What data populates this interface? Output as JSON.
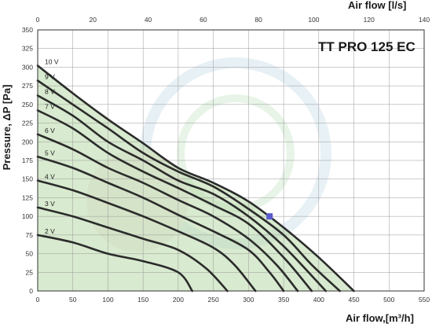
{
  "chart_data": {
    "type": "line",
    "title": "TT PRO 125 EC",
    "xlabel": "Air flow,[m³/h]",
    "x2label": "Air flow [l/s]",
    "ylabel": "Pressure, ΔP [Pa]",
    "xlim": [
      0,
      550
    ],
    "x2lim": [
      0,
      140
    ],
    "ylim": [
      0,
      350
    ],
    "x_ticks": [
      0,
      50,
      100,
      150,
      200,
      250,
      300,
      350,
      400,
      450,
      500,
      550
    ],
    "x2_ticks": [
      0,
      20,
      40,
      60,
      80,
      100,
      120,
      140
    ],
    "y_ticks": [
      0,
      25,
      50,
      75,
      100,
      125,
      150,
      175,
      200,
      225,
      250,
      275,
      300,
      325,
      350
    ],
    "grid": true,
    "series": [
      {
        "name": "10 V",
        "x": [
          0,
          50,
          100,
          150,
          200,
          250,
          300,
          350,
          400,
          450
        ],
        "y": [
          302,
          265,
          230,
          198,
          165,
          145,
          120,
          85,
          45,
          0
        ]
      },
      {
        "name": "9 V",
        "x": [
          0,
          50,
          100,
          150,
          200,
          250,
          300,
          350,
          390,
          430
        ],
        "y": [
          282,
          250,
          218,
          185,
          160,
          140,
          110,
          75,
          35,
          0
        ]
      },
      {
        "name": "8 V",
        "x": [
          0,
          50,
          100,
          150,
          200,
          250,
          300,
          350,
          410
        ],
        "y": [
          262,
          235,
          200,
          175,
          148,
          130,
          100,
          60,
          0
        ]
      },
      {
        "name": "7 V",
        "x": [
          0,
          50,
          100,
          150,
          200,
          250,
          300,
          350,
          390
        ],
        "y": [
          242,
          218,
          185,
          160,
          138,
          115,
          90,
          45,
          0
        ]
      },
      {
        "name": "6 V",
        "x": [
          0,
          50,
          100,
          150,
          200,
          250,
          300,
          340,
          370
        ],
        "y": [
          210,
          190,
          165,
          145,
          122,
          100,
          70,
          35,
          0
        ]
      },
      {
        "name": "5 V",
        "x": [
          0,
          50,
          100,
          150,
          200,
          250,
          300,
          330,
          350
        ],
        "y": [
          180,
          165,
          145,
          125,
          102,
          80,
          55,
          25,
          0
        ]
      },
      {
        "name": "4 V",
        "x": [
          0,
          50,
          100,
          150,
          200,
          250,
          280,
          310
        ],
        "y": [
          148,
          135,
          118,
          100,
          80,
          58,
          35,
          0
        ]
      },
      {
        "name": "3 V",
        "x": [
          0,
          50,
          100,
          150,
          200,
          240,
          270
        ],
        "y": [
          112,
          100,
          85,
          70,
          55,
          30,
          0
        ]
      },
      {
        "name": "2 V",
        "x": [
          0,
          50,
          100,
          150,
          200,
          220
        ],
        "y": [
          75,
          65,
          50,
          40,
          25,
          0
        ]
      }
    ],
    "marker": {
      "x": 330,
      "y": 100,
      "color": "#5a5acc"
    },
    "colors": {
      "curve": "#2b2b2b",
      "fill": "#b8d9a8",
      "grid": "#9a9a9a",
      "axis": "#333333"
    }
  }
}
